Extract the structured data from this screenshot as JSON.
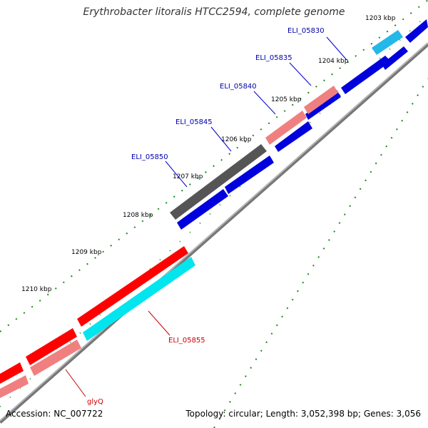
{
  "title": "Erythrobacter litoralis HTCC2594, complete genome",
  "footer": {
    "accession": "Accession: NC_007722",
    "summary": "Topology: circular; Length: 3,052,398 bp; Genes: 3,056"
  },
  "colors": {
    "forward_cds": "#0000dd",
    "reverse_cds": "#ff0000",
    "light_red": "#f08080",
    "cyan": "#00e5ee",
    "light_blue": "#22b8e8",
    "gray": "#666666",
    "backbone": "#888888",
    "ticks": "#1a8a1a",
    "label_blue": "#0000aa",
    "label_red": "#cc0000"
  },
  "ticks": [
    "1203 kbp",
    "1204 kbp",
    "1205 kbp",
    "1206 kbp",
    "1207 kbp",
    "1208 kbp",
    "1209 kbp",
    "1210 kbp"
  ],
  "gene_labels": [
    {
      "name": "ELI_05830",
      "strand": "forward"
    },
    {
      "name": "ELI_05835",
      "strand": "forward"
    },
    {
      "name": "ELI_05840",
      "strand": "forward"
    },
    {
      "name": "ELI_05845",
      "strand": "forward"
    },
    {
      "name": "ELI_05850",
      "strand": "forward"
    },
    {
      "name": "ELI_05855",
      "strand": "reverse"
    },
    {
      "name": "glyQ",
      "strand": "reverse"
    }
  ]
}
